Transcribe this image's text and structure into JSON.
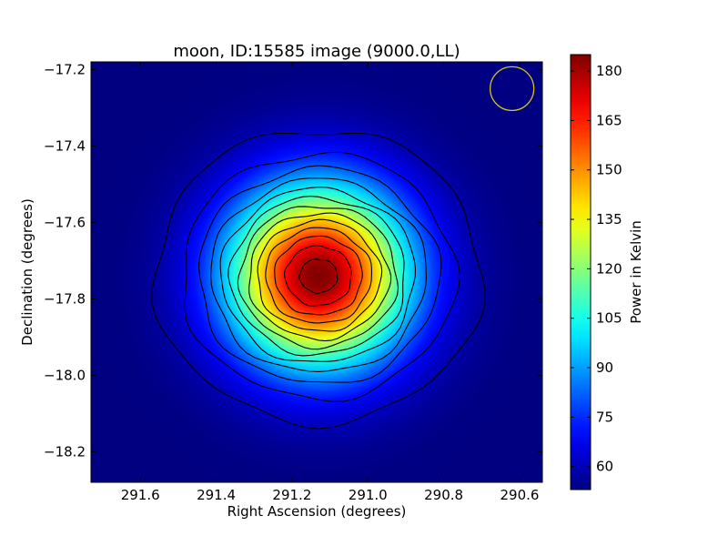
{
  "chart_data": {
    "type": "heatmap",
    "title": "moon, ID:15585 image (9000.0,LL)",
    "xlabel": "Right Ascension (degrees)",
    "ylabel": "Declination (degrees)",
    "xlim": [
      291.73,
      290.54
    ],
    "ylim": [
      -18.28,
      -17.18
    ],
    "x_inverted": true,
    "xticks": [
      {
        "value": 291.6,
        "label": "291.6"
      },
      {
        "value": 291.4,
        "label": "291.4"
      },
      {
        "value": 291.2,
        "label": "291.2"
      },
      {
        "value": 291.0,
        "label": "291.0"
      },
      {
        "value": 290.8,
        "label": "290.8"
      },
      {
        "value": 290.6,
        "label": "290.6"
      }
    ],
    "yticks": [
      {
        "value": -17.2,
        "label": "−17.2"
      },
      {
        "value": -17.4,
        "label": "−17.4"
      },
      {
        "value": -17.6,
        "label": "−17.6"
      },
      {
        "value": -17.8,
        "label": "−17.8"
      },
      {
        "value": -18.0,
        "label": "−18.0"
      },
      {
        "value": -18.2,
        "label": "−18.2"
      }
    ],
    "colormap": "jet",
    "colorbar": {
      "label": "Power in Kelvin",
      "range": [
        53,
        185
      ],
      "ticks": [
        {
          "value": 60,
          "label": "60"
        },
        {
          "value": 75,
          "label": "75"
        },
        {
          "value": 90,
          "label": "90"
        },
        {
          "value": 105,
          "label": "105"
        },
        {
          "value": 120,
          "label": "120"
        },
        {
          "value": 135,
          "label": "135"
        },
        {
          "value": 150,
          "label": "150"
        },
        {
          "value": 165,
          "label": "165"
        },
        {
          "value": 180,
          "label": "180"
        }
      ]
    },
    "source": {
      "center_ra": 291.13,
      "center_dec": -17.74,
      "peak_kelvin": 185,
      "background_kelvin": 53,
      "approx_radius_deg": 0.36
    },
    "contour_levels_kelvin": [
      60,
      70,
      80,
      90,
      100,
      110,
      120,
      130,
      140,
      150,
      160,
      170,
      180
    ],
    "beam_marker": {
      "ra": 290.62,
      "dec": -17.25,
      "shape": "circle",
      "color": "#d4c41a"
    },
    "grid": false,
    "legend": "none"
  }
}
